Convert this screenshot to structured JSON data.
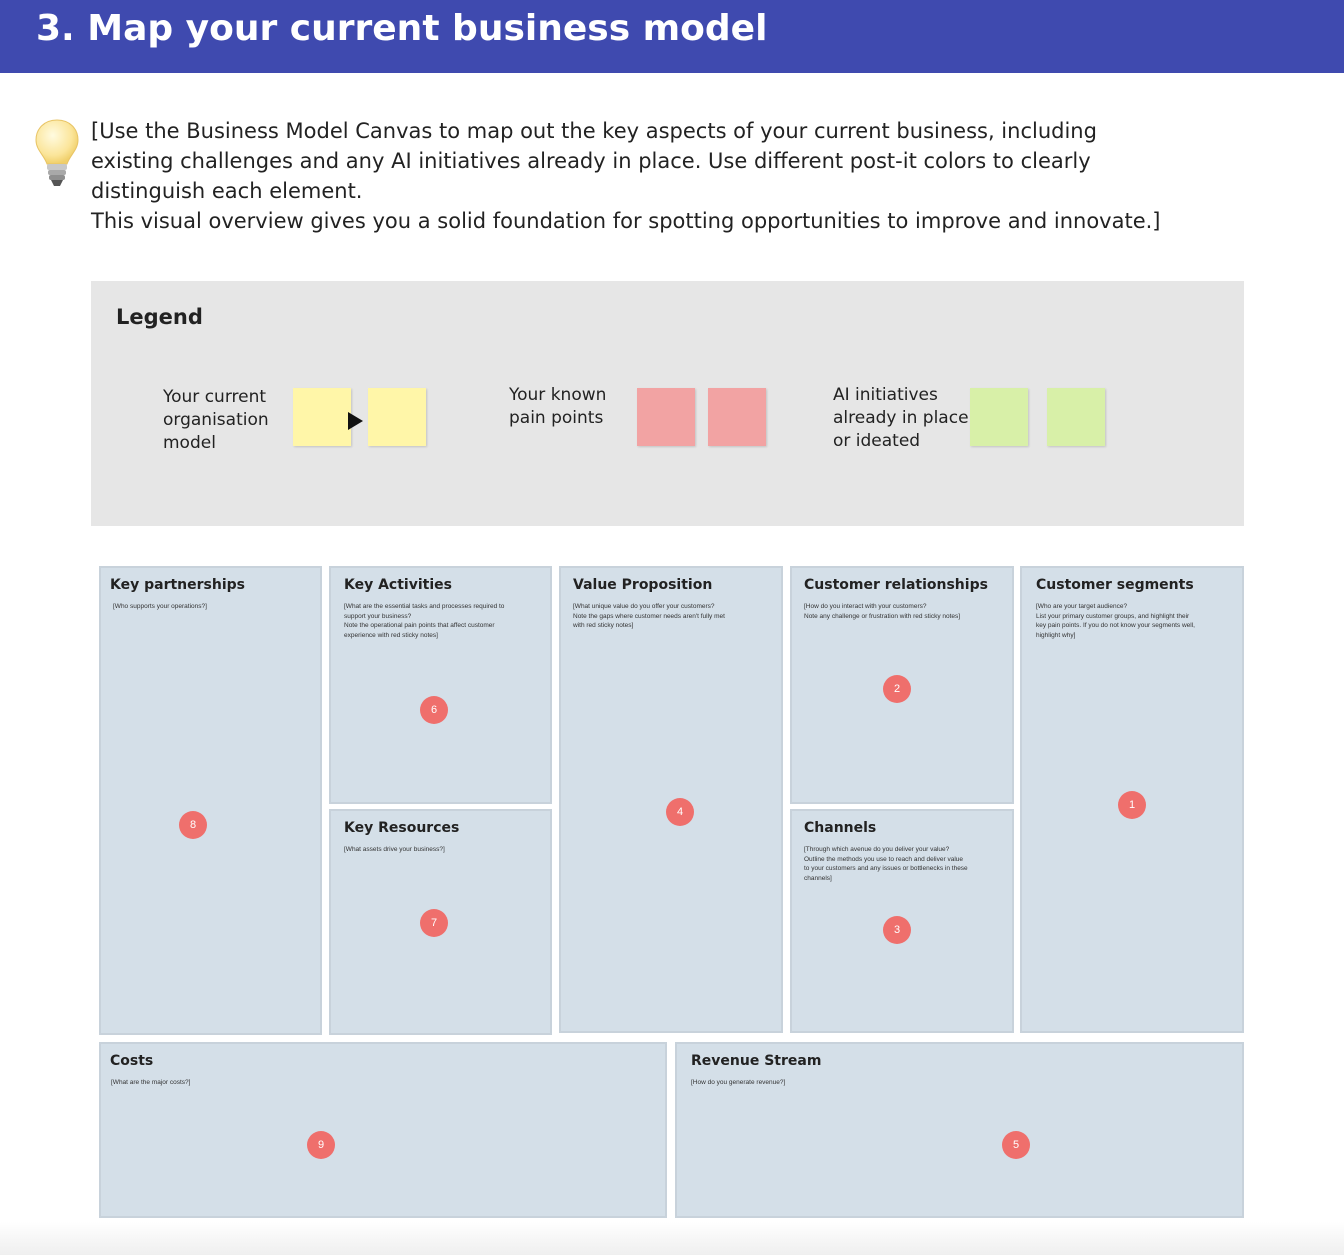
{
  "header": {
    "title": "3. Map your current business model"
  },
  "icons": {
    "tip": "lightbulb-icon"
  },
  "intro": {
    "line1": "[Use the Business Model Canvas to map out the key aspects of your current business, including existing challenges and any AI initiatives already in place. Use different post-it colors to clearly distinguish each element.",
    "line2": "This visual overview gives you a solid foundation for spotting opportunities to improve and innovate.]"
  },
  "legend": {
    "title": "Legend",
    "items": [
      {
        "label": "Your current\norganisation\nmodel",
        "color": "#fff6a8"
      },
      {
        "label": "Your known\npain points",
        "color": "#f2a3a3"
      },
      {
        "label": "AI initiatives\nalready in place\nor ideated",
        "color": "#d8f0a8"
      }
    ]
  },
  "canvas": {
    "key_partnerships": {
      "title": "Key partnerships",
      "desc": "[Who supports your operations?]",
      "number": "8"
    },
    "key_activities": {
      "title": "Key Activities",
      "desc": "[What are the essential tasks and processes required to\nsupport your business?\nNote the operational pain points that affect customer\nexperience with red sticky notes]",
      "number": "6"
    },
    "key_resources": {
      "title": "Key Resources",
      "desc": "[What assets drive your business?]",
      "number": "7"
    },
    "value_proposition": {
      "title": "Value Proposition",
      "desc": "[What unique value do you offer your customers?\nNote the gaps where customer needs aren't fully met\nwith red sticky notes]",
      "number": "4"
    },
    "customer_relationships": {
      "title": "Customer relationships",
      "desc": "[How do you interact with your customers?\nNote any challenge or frustration with red sticky notes]",
      "number": "2"
    },
    "channels": {
      "title": "Channels",
      "desc": "[Through which avenue do you deliver your value?\nOutline the methods you use to reach and deliver value\nto your customers and any issues or bottlenecks in these\nchannels]",
      "number": "3"
    },
    "customer_segments": {
      "title": "Customer segments",
      "desc": "[Who are your target audience?\nList your primary customer groups, and highlight their\nkey pain points. If you do not know your segments well,\nhighlight why]",
      "number": "1"
    },
    "costs": {
      "title": "Costs",
      "desc": "[What are the major costs?]",
      "number": "9"
    },
    "revenue_stream": {
      "title": "Revenue Stream",
      "desc": "[How do you generate revenue?]",
      "number": "5"
    }
  },
  "colors": {
    "header": "#3f4aaf",
    "badge": "#ef6f6c",
    "canvas_box": "#d4dfe8"
  }
}
